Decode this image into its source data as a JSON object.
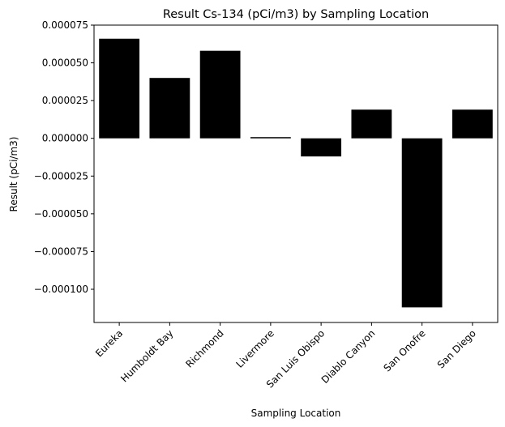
{
  "chart_data": {
    "type": "bar",
    "title": "Result Cs-134 (pCi/m3) by Sampling Location",
    "xlabel": "Sampling Location",
    "ylabel": "Result (pCi/m3)",
    "categories": [
      "Eureka",
      "Humboldt Bay",
      "Richmond",
      "Livermore",
      "San Luis Obispo",
      "Diablo Canyon",
      "San Onofre",
      "San Diego"
    ],
    "values": [
      6.6e-05,
      4e-05,
      5.8e-05,
      8e-07,
      -1.2e-05,
      1.9e-05,
      -0.000112,
      1.9e-05
    ],
    "ylim": [
      -0.000122,
      7.5e-05
    ],
    "yticks": [
      7.5e-05,
      5e-05,
      2.5e-05,
      0,
      -2.5e-05,
      -5e-05,
      -7.5e-05,
      -0.0001
    ],
    "ytick_labels": [
      "0.000075",
      "0.000050",
      "0.000025",
      "0.000000",
      "−0.000025",
      "−0.000050",
      "−0.000075",
      "−0.000100"
    ],
    "bar_color": "#000000",
    "grid": false,
    "legend": "none"
  }
}
